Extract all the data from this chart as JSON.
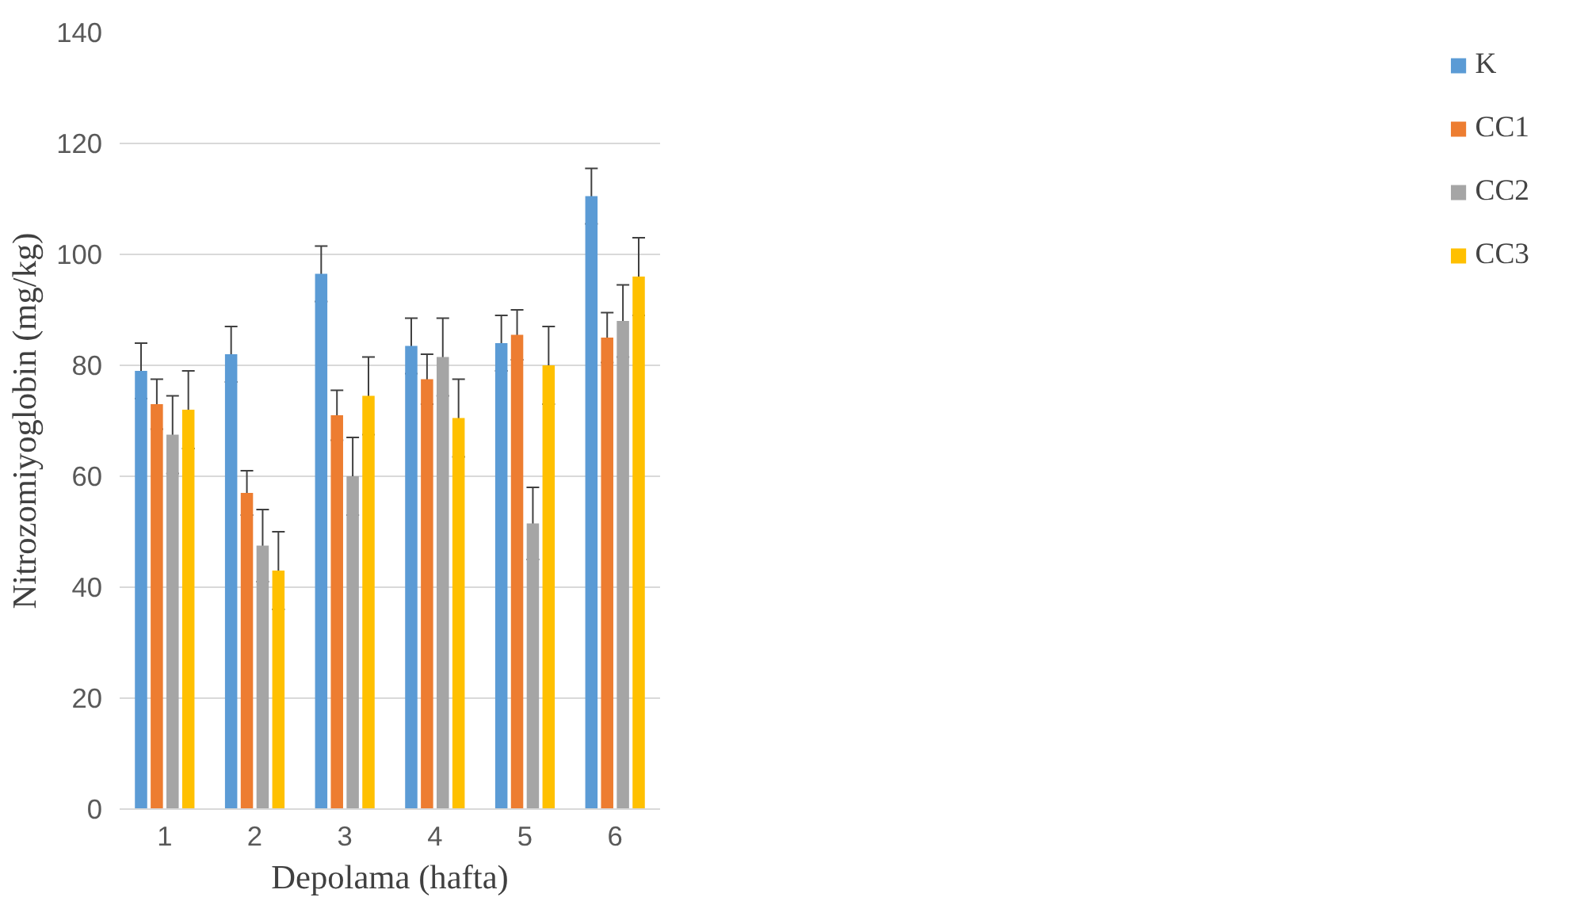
{
  "chart_data": {
    "type": "bar",
    "xlabel": "Depolama (hafta)",
    "ylabel": "Nitrozomiyoglobin (mg/kg)",
    "categories": [
      "1",
      "2",
      "3",
      "4",
      "5",
      "6"
    ],
    "series": [
      {
        "name": "K",
        "color": "#5b9bd5",
        "values": [
          79,
          82,
          96.5,
          83.5,
          84,
          110.5
        ],
        "errors": [
          5,
          5,
          5,
          5,
          5,
          5
        ]
      },
      {
        "name": "CC1",
        "color": "#ed7d31",
        "values": [
          73,
          57,
          71,
          77.5,
          85.5,
          85
        ],
        "errors": [
          4.5,
          4,
          4.5,
          4.5,
          4.5,
          4.5
        ]
      },
      {
        "name": "CC2",
        "color": "#a5a5a5",
        "values": [
          67.5,
          47.5,
          60,
          81.5,
          51.5,
          88
        ],
        "errors": [
          7,
          6.5,
          7,
          7,
          6.5,
          6.5
        ]
      },
      {
        "name": "CC3",
        "color": "#ffc000",
        "values": [
          72,
          43,
          74.5,
          70.5,
          80,
          96
        ],
        "errors": [
          7,
          7,
          7,
          7,
          7,
          7
        ]
      }
    ],
    "ylim": [
      0,
      140
    ],
    "yticks": [
      0,
      20,
      40,
      60,
      80,
      100,
      120,
      140
    ],
    "grid": "y",
    "legend": "right"
  }
}
